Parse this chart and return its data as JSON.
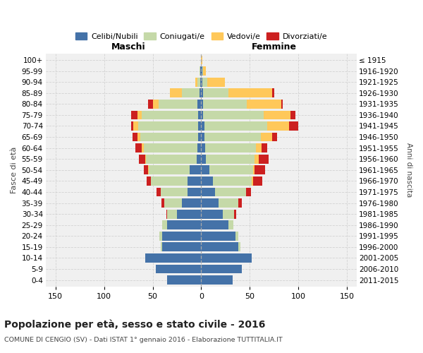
{
  "age_groups": [
    "0-4",
    "5-9",
    "10-14",
    "15-19",
    "20-24",
    "25-29",
    "30-34",
    "35-39",
    "40-44",
    "45-49",
    "50-54",
    "55-59",
    "60-64",
    "65-69",
    "70-74",
    "75-79",
    "80-84",
    "85-89",
    "90-94",
    "95-99",
    "100+"
  ],
  "birth_years": [
    "2011-2015",
    "2006-2010",
    "2001-2005",
    "1996-2000",
    "1991-1995",
    "1986-1990",
    "1981-1985",
    "1976-1980",
    "1971-1975",
    "1966-1970",
    "1961-1965",
    "1956-1960",
    "1951-1955",
    "1946-1950",
    "1941-1945",
    "1936-1940",
    "1931-1935",
    "1926-1930",
    "1921-1925",
    "1916-1920",
    "≤ 1915"
  ],
  "male": {
    "celibi": [
      35,
      47,
      58,
      40,
      40,
      35,
      25,
      20,
      14,
      14,
      12,
      5,
      4,
      3,
      3,
      3,
      4,
      2,
      1,
      1,
      0
    ],
    "coniugati": [
      0,
      0,
      0,
      2,
      3,
      5,
      10,
      18,
      28,
      38,
      42,
      52,
      55,
      60,
      62,
      58,
      40,
      18,
      3,
      1,
      0
    ],
    "vedovi": [
      0,
      0,
      0,
      0,
      0,
      0,
      0,
      0,
      0,
      0,
      1,
      1,
      2,
      3,
      5,
      5,
      6,
      12,
      2,
      0,
      0
    ],
    "divorziati": [
      0,
      0,
      0,
      0,
      0,
      0,
      1,
      3,
      4,
      4,
      4,
      6,
      7,
      5,
      2,
      6,
      5,
      0,
      0,
      0,
      0
    ]
  },
  "female": {
    "nubili": [
      32,
      42,
      52,
      38,
      35,
      28,
      22,
      18,
      14,
      12,
      8,
      5,
      4,
      3,
      3,
      2,
      2,
      2,
      1,
      1,
      0
    ],
    "coniugate": [
      0,
      0,
      0,
      2,
      3,
      5,
      12,
      20,
      32,
      40,
      45,
      50,
      52,
      58,
      65,
      62,
      45,
      26,
      5,
      1,
      0
    ],
    "vedove": [
      0,
      0,
      0,
      0,
      0,
      0,
      0,
      0,
      0,
      1,
      2,
      4,
      6,
      12,
      22,
      28,
      35,
      45,
      18,
      3,
      1
    ],
    "divorziate": [
      0,
      0,
      0,
      0,
      0,
      0,
      2,
      4,
      5,
      10,
      11,
      10,
      6,
      5,
      10,
      5,
      2,
      2,
      0,
      0,
      0
    ]
  },
  "colors": {
    "celibi": "#4472a8",
    "coniugati": "#c5d9a8",
    "vedovi": "#ffc85a",
    "divorziati": "#cc2020"
  },
  "title": "Popolazione per età, sesso e stato civile - 2016",
  "subtitle": "COMUNE DI CENGIO (SV) - Dati ISTAT 1° gennaio 2016 - Elaborazione TUTTITALIA.IT",
  "xlabel_left": "Maschi",
  "xlabel_right": "Femmine",
  "ylabel": "Fasce di età",
  "ylabel_right": "Anni di nascita",
  "xlim": 160,
  "bg_color": "#ffffff",
  "plot_bg": "#f0f0f0",
  "grid_color": "#d0d0d0"
}
